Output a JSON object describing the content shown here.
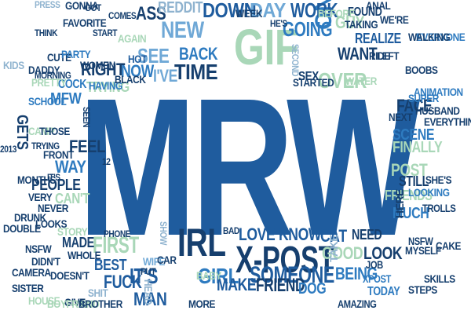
{
  "colors": {
    "blue_dark": "#1f5c9e",
    "blue": "#2e7bc0",
    "blue_light": "#6fa8d6",
    "green": "#a9d7b8",
    "green_dark": "#7fbf9a",
    "navy": "#163f6e",
    "gray": "#8fb3cf"
  },
  "hero": {
    "text": "MRW"
  },
  "words": [
    {
      "t": "MRW",
      "c": "blue_dark",
      "k": "hero"
    },
    {
      "t": "GIF",
      "c": "green",
      "k": "xl"
    },
    {
      "t": "IRL",
      "c": "navy",
      "k": "lg"
    },
    {
      "t": "X-POST",
      "c": "navy",
      "k": "lg"
    },
    {
      "t": "NEW",
      "c": "blue_light",
      "k": "md"
    },
    {
      "t": "TIME",
      "c": "navy",
      "k": "md"
    },
    {
      "t": "DOWN",
      "c": "blue_dark",
      "k": "md"
    },
    {
      "t": "ONE",
      "c": "blue",
      "k": "md"
    },
    {
      "t": "FIRST",
      "c": "green",
      "k": "md"
    },
    {
      "t": "SOMEONE",
      "c": "blue_dark",
      "k": "md"
    },
    {
      "t": "GIRL",
      "c": "blue",
      "k": "md"
    },
    {
      "t": "FRIEND",
      "c": "navy",
      "k": "md"
    },
    {
      "t": "IT'S",
      "c": "blue_dark",
      "k": "md"
    },
    {
      "t": "SEE",
      "c": "blue_light",
      "k": "md"
    },
    {
      "t": "BACK",
      "c": "blue",
      "k": "md"
    },
    {
      "t": "DAY",
      "c": "blue_light",
      "k": "md"
    },
    {
      "t": "WORK",
      "c": "blue_dark",
      "k": "sm"
    },
    {
      "t": "ASS",
      "c": "navy",
      "k": "sm"
    },
    {
      "t": "GOING",
      "c": "blue",
      "k": "sm"
    },
    {
      "t": "REDDIT",
      "c": "gray",
      "k": "sm"
    },
    {
      "t": "WANT",
      "c": "navy",
      "k": "sm"
    },
    {
      "t": "GUY",
      "c": "green",
      "k": "sm"
    },
    {
      "t": "OVER",
      "c": "green",
      "k": "sm"
    },
    {
      "t": "NOW",
      "c": "blue",
      "k": "sm"
    },
    {
      "t": "I'VE",
      "c": "blue_light",
      "k": "sm"
    },
    {
      "t": "RIGHT",
      "c": "navy",
      "k": "sm"
    },
    {
      "t": "TRYING",
      "c": "green",
      "k": "sm"
    },
    {
      "t": "MFW",
      "c": "blue",
      "k": "sm"
    },
    {
      "t": "FEEL",
      "c": "navy",
      "k": "sm"
    },
    {
      "t": "WAY",
      "c": "blue",
      "k": "sm"
    },
    {
      "t": "PEOPLE",
      "c": "navy",
      "k": "sm"
    },
    {
      "t": "FACE",
      "c": "navy",
      "k": "sm"
    },
    {
      "t": "SCENE",
      "c": "blue",
      "k": "sm"
    },
    {
      "t": "FINALLY",
      "c": "green",
      "k": "sm"
    },
    {
      "t": "POST",
      "c": "green",
      "k": "sm"
    },
    {
      "t": "STILL",
      "c": "navy",
      "k": "sm"
    },
    {
      "t": "FRIENDS",
      "c": "green",
      "k": "sm"
    },
    {
      "t": "MUCH",
      "c": "blue",
      "k": "sm"
    },
    {
      "t": "LOVE",
      "c": "blue_dark",
      "k": "sm"
    },
    {
      "t": "KNOW",
      "c": "blue_dark",
      "k": "sm"
    },
    {
      "t": "CAT",
      "c": "blue_dark",
      "k": "sm"
    },
    {
      "t": "NEED",
      "c": "navy",
      "k": "sm"
    },
    {
      "t": "GOOD",
      "c": "green",
      "k": "sm"
    },
    {
      "t": "LOOK",
      "c": "navy",
      "k": "sm"
    },
    {
      "t": "MAKE",
      "c": "blue_dark",
      "k": "sm"
    },
    {
      "t": "BEING",
      "c": "blue",
      "k": "sm"
    },
    {
      "t": "MAN",
      "c": "blue_dark",
      "k": "sm"
    },
    {
      "t": "BEST",
      "c": "blue_dark",
      "k": "sm"
    },
    {
      "t": "MADE",
      "c": "navy",
      "k": "sm"
    },
    {
      "t": "DOG",
      "c": "blue",
      "k": "sm"
    },
    {
      "t": "FUCK",
      "c": "blue_dark",
      "k": "sm"
    },
    {
      "t": "BABY",
      "c": "green",
      "k": "sm"
    },
    {
      "t": "GETS",
      "c": "navy",
      "k": "sm"
    },
    {
      "t": "REALIZE",
      "c": "blue_dark",
      "k": "xs"
    },
    {
      "t": "FOUND",
      "c": "navy",
      "k": "xs"
    },
    {
      "t": "HOT",
      "c": "blue_dark",
      "k": "xs"
    },
    {
      "t": "TODAY",
      "c": "blue",
      "k": "xs"
    },
    {
      "t": "AMAZING",
      "c": "navy",
      "k": "xs"
    },
    {
      "t": "HERE",
      "c": "navy",
      "k": "xs"
    },
    {
      "t": "TROLLS",
      "c": "navy",
      "k": "xs"
    },
    {
      "t": "NSFW",
      "c": "navy",
      "k": "xs"
    },
    {
      "t": "XPOST",
      "c": "blue",
      "k": "xs"
    },
    {
      "t": "JOB",
      "c": "navy",
      "k": "xs"
    },
    {
      "t": "START",
      "c": "navy",
      "k": "xs"
    },
    {
      "t": "FAVORITE",
      "c": "navy",
      "k": "xs"
    },
    {
      "t": "COCK",
      "c": "blue",
      "k": "xs"
    },
    {
      "t": "HAVING",
      "c": "blue",
      "k": "xs"
    },
    {
      "t": "MORNING",
      "c": "navy",
      "k": "xs"
    },
    {
      "t": "CUTE",
      "c": "navy",
      "k": "xs"
    },
    {
      "t": "SCHOOL",
      "c": "blue",
      "k": "xs"
    },
    {
      "t": "FRONT",
      "c": "navy",
      "k": "xs"
    },
    {
      "t": "VERY",
      "c": "navy",
      "k": "xs"
    },
    {
      "t": "LOOKS",
      "c": "navy",
      "k": "xs"
    },
    {
      "t": "WIFE",
      "c": "blue_light",
      "k": "xs"
    },
    {
      "t": "HOUSE",
      "c": "green",
      "k": "xs"
    },
    {
      "t": "MORE",
      "c": "navy",
      "k": "xs"
    },
    {
      "t": "CAN'T",
      "c": "green",
      "k": "xs"
    },
    {
      "t": "ANIMATION",
      "c": "blue",
      "k": "xs"
    },
    {
      "t": "EVERYONE",
      "c": "blue",
      "k": "xs"
    },
    {
      "t": "WATER",
      "c": "green",
      "k": "xs"
    },
    {
      "t": "SEX",
      "c": "navy",
      "k": "xs"
    },
    {
      "t": "WEEK",
      "c": "navy",
      "k": "xs"
    },
    {
      "t": "WE'RE",
      "c": "navy",
      "k": "xs"
    },
    {
      "t": "RIDE",
      "c": "navy",
      "k": "xs"
    },
    {
      "t": "LEFT",
      "c": "navy",
      "k": "xs"
    },
    {
      "t": "PARTY",
      "c": "blue",
      "k": "xs"
    },
    {
      "t": "WOMEN",
      "c": "navy",
      "k": "xs"
    },
    {
      "t": "CAMP",
      "c": "green",
      "k": "xs"
    },
    {
      "t": "CAMERA",
      "c": "navy",
      "k": "xs"
    },
    {
      "t": "SISTER",
      "c": "navy",
      "k": "xs"
    },
    {
      "t": "DOESN'T",
      "c": "navy",
      "k": "xs"
    },
    {
      "t": "GIVE",
      "c": "navy",
      "k": "xs"
    },
    {
      "t": "AGAIN",
      "c": "green",
      "k": "xs"
    },
    {
      "t": "PUT",
      "c": "navy",
      "k": "xs"
    },
    {
      "t": "PHONE",
      "c": "navy",
      "k": "xs"
    },
    {
      "t": "BEFORE",
      "c": "green",
      "k": "xs"
    },
    {
      "t": "TAKING",
      "c": "navy",
      "k": "xs"
    },
    {
      "t": "WALKING",
      "c": "navy",
      "k": "xs"
    },
    {
      "t": "SUPER",
      "c": "blue",
      "k": "xs"
    },
    {
      "t": "NEXT",
      "c": "navy",
      "k": "xs"
    },
    {
      "t": "EVERYTHING",
      "c": "navy",
      "k": "xs"
    },
    {
      "t": "SHE'S",
      "c": "navy",
      "k": "xs"
    },
    {
      "t": "LOOKING",
      "c": "blue",
      "k": "xs"
    },
    {
      "t": "SKILLS",
      "c": "navy",
      "k": "xs"
    },
    {
      "t": "MYSELF",
      "c": "navy",
      "k": "xs"
    },
    {
      "t": "STARTED",
      "c": "navy",
      "k": "xs"
    },
    {
      "t": "GONNA",
      "c": "navy",
      "k": "xs"
    },
    {
      "t": "PRESS",
      "c": "gray",
      "k": "xs"
    },
    {
      "t": "BLACK",
      "c": "navy",
      "k": "xs"
    },
    {
      "t": "SEEN",
      "c": "navy",
      "k": "xs"
    },
    {
      "t": "GOT",
      "c": "navy",
      "k": "xs"
    },
    {
      "t": "SHOW",
      "c": "gray",
      "k": "xs"
    },
    {
      "t": "KIDS",
      "c": "gray",
      "k": "xs"
    },
    {
      "t": "PRETTY",
      "c": "green",
      "k": "xs"
    },
    {
      "t": "BOYFRIEND",
      "c": "green",
      "k": "xs"
    },
    {
      "t": "DADDY",
      "c": "navy",
      "k": "xs"
    },
    {
      "t": "HE'S",
      "c": "navy",
      "k": "xs"
    },
    {
      "t": "SECOND",
      "c": "gray",
      "k": "xs"
    },
    {
      "t": "BAD",
      "c": "navy",
      "k": "xs"
    },
    {
      "t": "ANAL",
      "c": "navy",
      "k": "xs"
    },
    {
      "t": "HUSBAND",
      "c": "navy",
      "k": "xs"
    },
    {
      "t": "TAKE",
      "c": "gray",
      "k": "xs"
    },
    {
      "t": "STORY",
      "c": "green",
      "k": "xs"
    },
    {
      "t": "THOSE",
      "c": "navy",
      "k": "xs"
    },
    {
      "t": "DOUBLE",
      "c": "navy",
      "k": "xs"
    },
    {
      "t": "BOOBS",
      "c": "navy",
      "k": "xs"
    },
    {
      "t": "CAKE",
      "c": "navy",
      "k": "xs"
    },
    {
      "t": "MONTHS",
      "c": "navy",
      "k": "xs"
    },
    {
      "t": "IT'S",
      "c": "navy",
      "k": "xs"
    },
    {
      "t": "THINK",
      "c": "navy",
      "k": "xs"
    },
    {
      "t": "COMES",
      "c": "navy",
      "k": "xs"
    },
    {
      "t": "TRYING",
      "c": "navy",
      "k": "xs"
    },
    {
      "t": "12",
      "c": "navy",
      "k": "xs"
    },
    {
      "t": "SHIT",
      "c": "gray",
      "k": "xs"
    },
    {
      "t": "NSFW",
      "c": "navy",
      "k": "xs"
    },
    {
      "t": "DIDN'T",
      "c": "navy",
      "k": "xs"
    },
    {
      "t": "CAR",
      "c": "navy",
      "k": "xs"
    },
    {
      "t": "HEAD",
      "c": "gray",
      "k": "xs"
    },
    {
      "t": "WHOLE",
      "c": "navy",
      "k": "xs"
    },
    {
      "t": "DRUNK",
      "c": "navy",
      "k": "xs"
    },
    {
      "t": "2013",
      "c": "navy",
      "k": "xs"
    },
    {
      "t": "STEPS",
      "c": "navy",
      "k": "xs"
    },
    {
      "t": "NEVER",
      "c": "navy",
      "k": "xs"
    },
    {
      "t": "BROTHER",
      "c": "navy",
      "k": "xs"
    }
  ]
}
